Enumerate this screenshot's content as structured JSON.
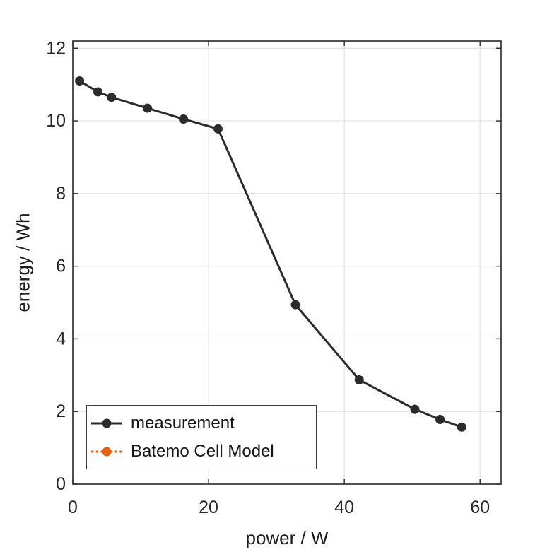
{
  "chart_data": {
    "type": "line",
    "title": "",
    "xlabel": "power / W",
    "ylabel": "energy / Wh",
    "xlim": [
      0,
      63.1
    ],
    "ylim": [
      0,
      12.2
    ],
    "xticks": [
      0,
      20,
      40,
      60
    ],
    "yticks": [
      0,
      2,
      4,
      6,
      8,
      10,
      12
    ],
    "grid": true,
    "legend_position": "south-west-inside",
    "colors": {
      "axis": "#262626",
      "grid": "#e2e2e2",
      "tick_text": "#262626",
      "label_text": "#1c1c1c"
    },
    "series": [
      {
        "name": "measurement",
        "color": "#2b2b2b",
        "line_style": "solid",
        "marker": "filled-circle",
        "visible_in_plot": true,
        "x": [
          1.0,
          3.7,
          5.7,
          11.0,
          16.3,
          21.4,
          32.8,
          42.2,
          50.4,
          54.1,
          57.3
        ],
        "y": [
          11.1,
          10.8,
          10.65,
          10.35,
          10.05,
          9.78,
          4.94,
          2.87,
          2.06,
          1.78,
          1.57
        ]
      },
      {
        "name": "Batemo Cell Model",
        "color": "#e6600d",
        "line_style": "dotted",
        "marker": "filled-circle",
        "visible_in_plot": false,
        "x": [],
        "y": []
      }
    ]
  }
}
